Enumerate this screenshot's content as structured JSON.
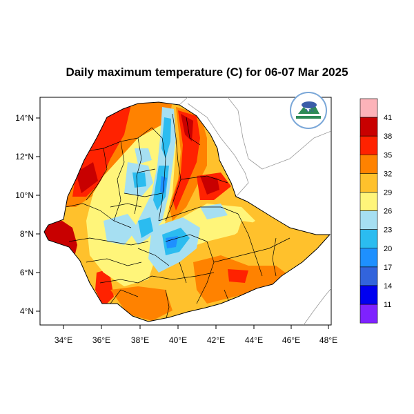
{
  "title": "Daily maximum temperature (C) for 06-07 Mar 2025",
  "map": {
    "x_ticks": [
      "34°E",
      "36°E",
      "38°E",
      "40°E",
      "42°E",
      "44°E",
      "46°E",
      "48°E"
    ],
    "y_ticks": [
      "14°N",
      "12°N",
      "10°N",
      "8°N",
      "6°N",
      "4°N"
    ],
    "logo_icon": "ethiopian-meteorology-institute-logo"
  },
  "colorbar": {
    "labels": [
      "41",
      "38",
      "35",
      "32",
      "29",
      "26",
      "23",
      "20",
      "17",
      "14",
      "11"
    ],
    "colors": [
      "#fcb3b9",
      "#c80000",
      "#ff2200",
      "#ff8200",
      "#ffc12c",
      "#fff57a",
      "#a6dff2",
      "#2bbcf0",
      "#1e90ff",
      "#3264dc",
      "#0000f0",
      "#7e22ff"
    ]
  },
  "temperature_zones": {
    "colors": {
      "hot_red": "#c80000",
      "red": "#ff2200",
      "orange": "#ff8200",
      "light_orange": "#ffc12c",
      "yellow": "#fff57a",
      "light_blue": "#a6dff2",
      "blue": "#2bbcf0",
      "deep_blue": "#1e90ff"
    }
  }
}
